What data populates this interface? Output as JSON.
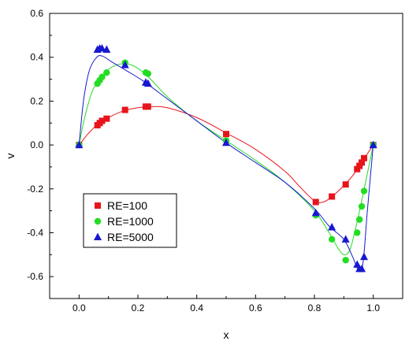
{
  "chart_data": {
    "type": "scatter",
    "title": "",
    "xlabel": "x",
    "ylabel": "v",
    "xlim": [
      -0.1,
      1.1
    ],
    "ylim": [
      -0.7,
      0.6
    ],
    "xticks": [
      0.0,
      0.2,
      0.4,
      0.6,
      0.8,
      1.0
    ],
    "yticks": [
      0.6,
      0.4,
      0.2,
      0.0,
      -0.2,
      -0.4,
      -0.6
    ],
    "xtick_labels": [
      "0.0",
      "0.2",
      "0.4",
      "0.6",
      "0.8",
      "1.0"
    ],
    "ytick_labels": [
      "0.6",
      "0.4",
      "0.2",
      "0.0",
      "-0.2",
      "-0.4",
      "-0.6"
    ],
    "grid": false,
    "legend_position": "lower-left",
    "series": [
      {
        "name": "RE=100",
        "marker": "square",
        "color": "#e8141c",
        "points": [
          [
            0.0,
            0.0
          ],
          [
            0.0625,
            0.09
          ],
          [
            0.0703,
            0.1
          ],
          [
            0.0781,
            0.11
          ],
          [
            0.0938,
            0.12
          ],
          [
            0.1563,
            0.16
          ],
          [
            0.2266,
            0.175
          ],
          [
            0.2344,
            0.175
          ],
          [
            0.5,
            0.05
          ],
          [
            0.8047,
            -0.26
          ],
          [
            0.8594,
            -0.235
          ],
          [
            0.9063,
            -0.18
          ],
          [
            0.9453,
            -0.11
          ],
          [
            0.9531,
            -0.095
          ],
          [
            0.9609,
            -0.08
          ],
          [
            0.9688,
            -0.06
          ],
          [
            1.0,
            0.0
          ]
        ],
        "curve": [
          [
            0.0,
            0.0
          ],
          [
            0.03,
            0.05
          ],
          [
            0.06,
            0.09
          ],
          [
            0.1,
            0.125
          ],
          [
            0.15,
            0.155
          ],
          [
            0.2,
            0.17
          ],
          [
            0.25,
            0.175
          ],
          [
            0.3,
            0.17
          ],
          [
            0.4,
            0.125
          ],
          [
            0.5,
            0.055
          ],
          [
            0.6,
            -0.02
          ],
          [
            0.7,
            -0.12
          ],
          [
            0.75,
            -0.19
          ],
          [
            0.8,
            -0.255
          ],
          [
            0.83,
            -0.26
          ],
          [
            0.86,
            -0.235
          ],
          [
            0.9,
            -0.185
          ],
          [
            0.93,
            -0.14
          ],
          [
            0.95,
            -0.1
          ],
          [
            0.97,
            -0.06
          ],
          [
            1.0,
            0.0
          ]
        ]
      },
      {
        "name": "RE=1000",
        "marker": "circle",
        "color": "#22dd22",
        "points": [
          [
            0.0,
            0.0
          ],
          [
            0.0625,
            0.28
          ],
          [
            0.0703,
            0.295
          ],
          [
            0.0781,
            0.31
          ],
          [
            0.0938,
            0.33
          ],
          [
            0.1563,
            0.375
          ],
          [
            0.2266,
            0.33
          ],
          [
            0.2344,
            0.325
          ],
          [
            0.5,
            0.02
          ],
          [
            0.8047,
            -0.32
          ],
          [
            0.8594,
            -0.43
          ],
          [
            0.9063,
            -0.525
          ],
          [
            0.9453,
            -0.4
          ],
          [
            0.9531,
            -0.34
          ],
          [
            0.9609,
            -0.28
          ],
          [
            0.9688,
            -0.21
          ],
          [
            1.0,
            0.0
          ]
        ],
        "curve": [
          [
            0.0,
            0.0
          ],
          [
            0.02,
            0.13
          ],
          [
            0.05,
            0.26
          ],
          [
            0.1,
            0.345
          ],
          [
            0.16,
            0.37
          ],
          [
            0.22,
            0.33
          ],
          [
            0.3,
            0.22
          ],
          [
            0.4,
            0.11
          ],
          [
            0.5,
            0.02
          ],
          [
            0.6,
            -0.07
          ],
          [
            0.7,
            -0.17
          ],
          [
            0.8,
            -0.3
          ],
          [
            0.85,
            -0.4
          ],
          [
            0.88,
            -0.47
          ],
          [
            0.9,
            -0.5
          ],
          [
            0.92,
            -0.48
          ],
          [
            0.94,
            -0.38
          ],
          [
            0.96,
            -0.26
          ],
          [
            0.98,
            -0.13
          ],
          [
            1.0,
            0.0
          ]
        ]
      },
      {
        "name": "RE=5000",
        "marker": "triangle",
        "color": "#1818d0",
        "points": [
          [
            0.0,
            0.0
          ],
          [
            0.0625,
            0.435
          ],
          [
            0.0703,
            0.44
          ],
          [
            0.0781,
            0.44
          ],
          [
            0.0938,
            0.435
          ],
          [
            0.1563,
            0.365
          ],
          [
            0.2266,
            0.285
          ],
          [
            0.2344,
            0.28
          ],
          [
            0.5,
            0.01
          ],
          [
            0.8047,
            -0.31
          ],
          [
            0.8594,
            -0.375
          ],
          [
            0.9063,
            -0.43
          ],
          [
            0.9453,
            -0.545
          ],
          [
            0.9531,
            -0.565
          ],
          [
            0.9609,
            -0.565
          ],
          [
            0.9688,
            -0.51
          ],
          [
            1.0,
            0.0
          ]
        ],
        "curve": [
          [
            0.0,
            0.0
          ],
          [
            0.015,
            0.2
          ],
          [
            0.035,
            0.34
          ],
          [
            0.06,
            0.4
          ],
          [
            0.08,
            0.405
          ],
          [
            0.11,
            0.38
          ],
          [
            0.16,
            0.34
          ],
          [
            0.22,
            0.29
          ],
          [
            0.3,
            0.21
          ],
          [
            0.4,
            0.11
          ],
          [
            0.5,
            0.01
          ],
          [
            0.6,
            -0.08
          ],
          [
            0.7,
            -0.17
          ],
          [
            0.8,
            -0.29
          ],
          [
            0.85,
            -0.37
          ],
          [
            0.9,
            -0.43
          ],
          [
            0.93,
            -0.51
          ],
          [
            0.95,
            -0.57
          ],
          [
            0.965,
            -0.54
          ],
          [
            0.98,
            -0.3
          ],
          [
            1.0,
            0.0
          ]
        ]
      }
    ]
  }
}
